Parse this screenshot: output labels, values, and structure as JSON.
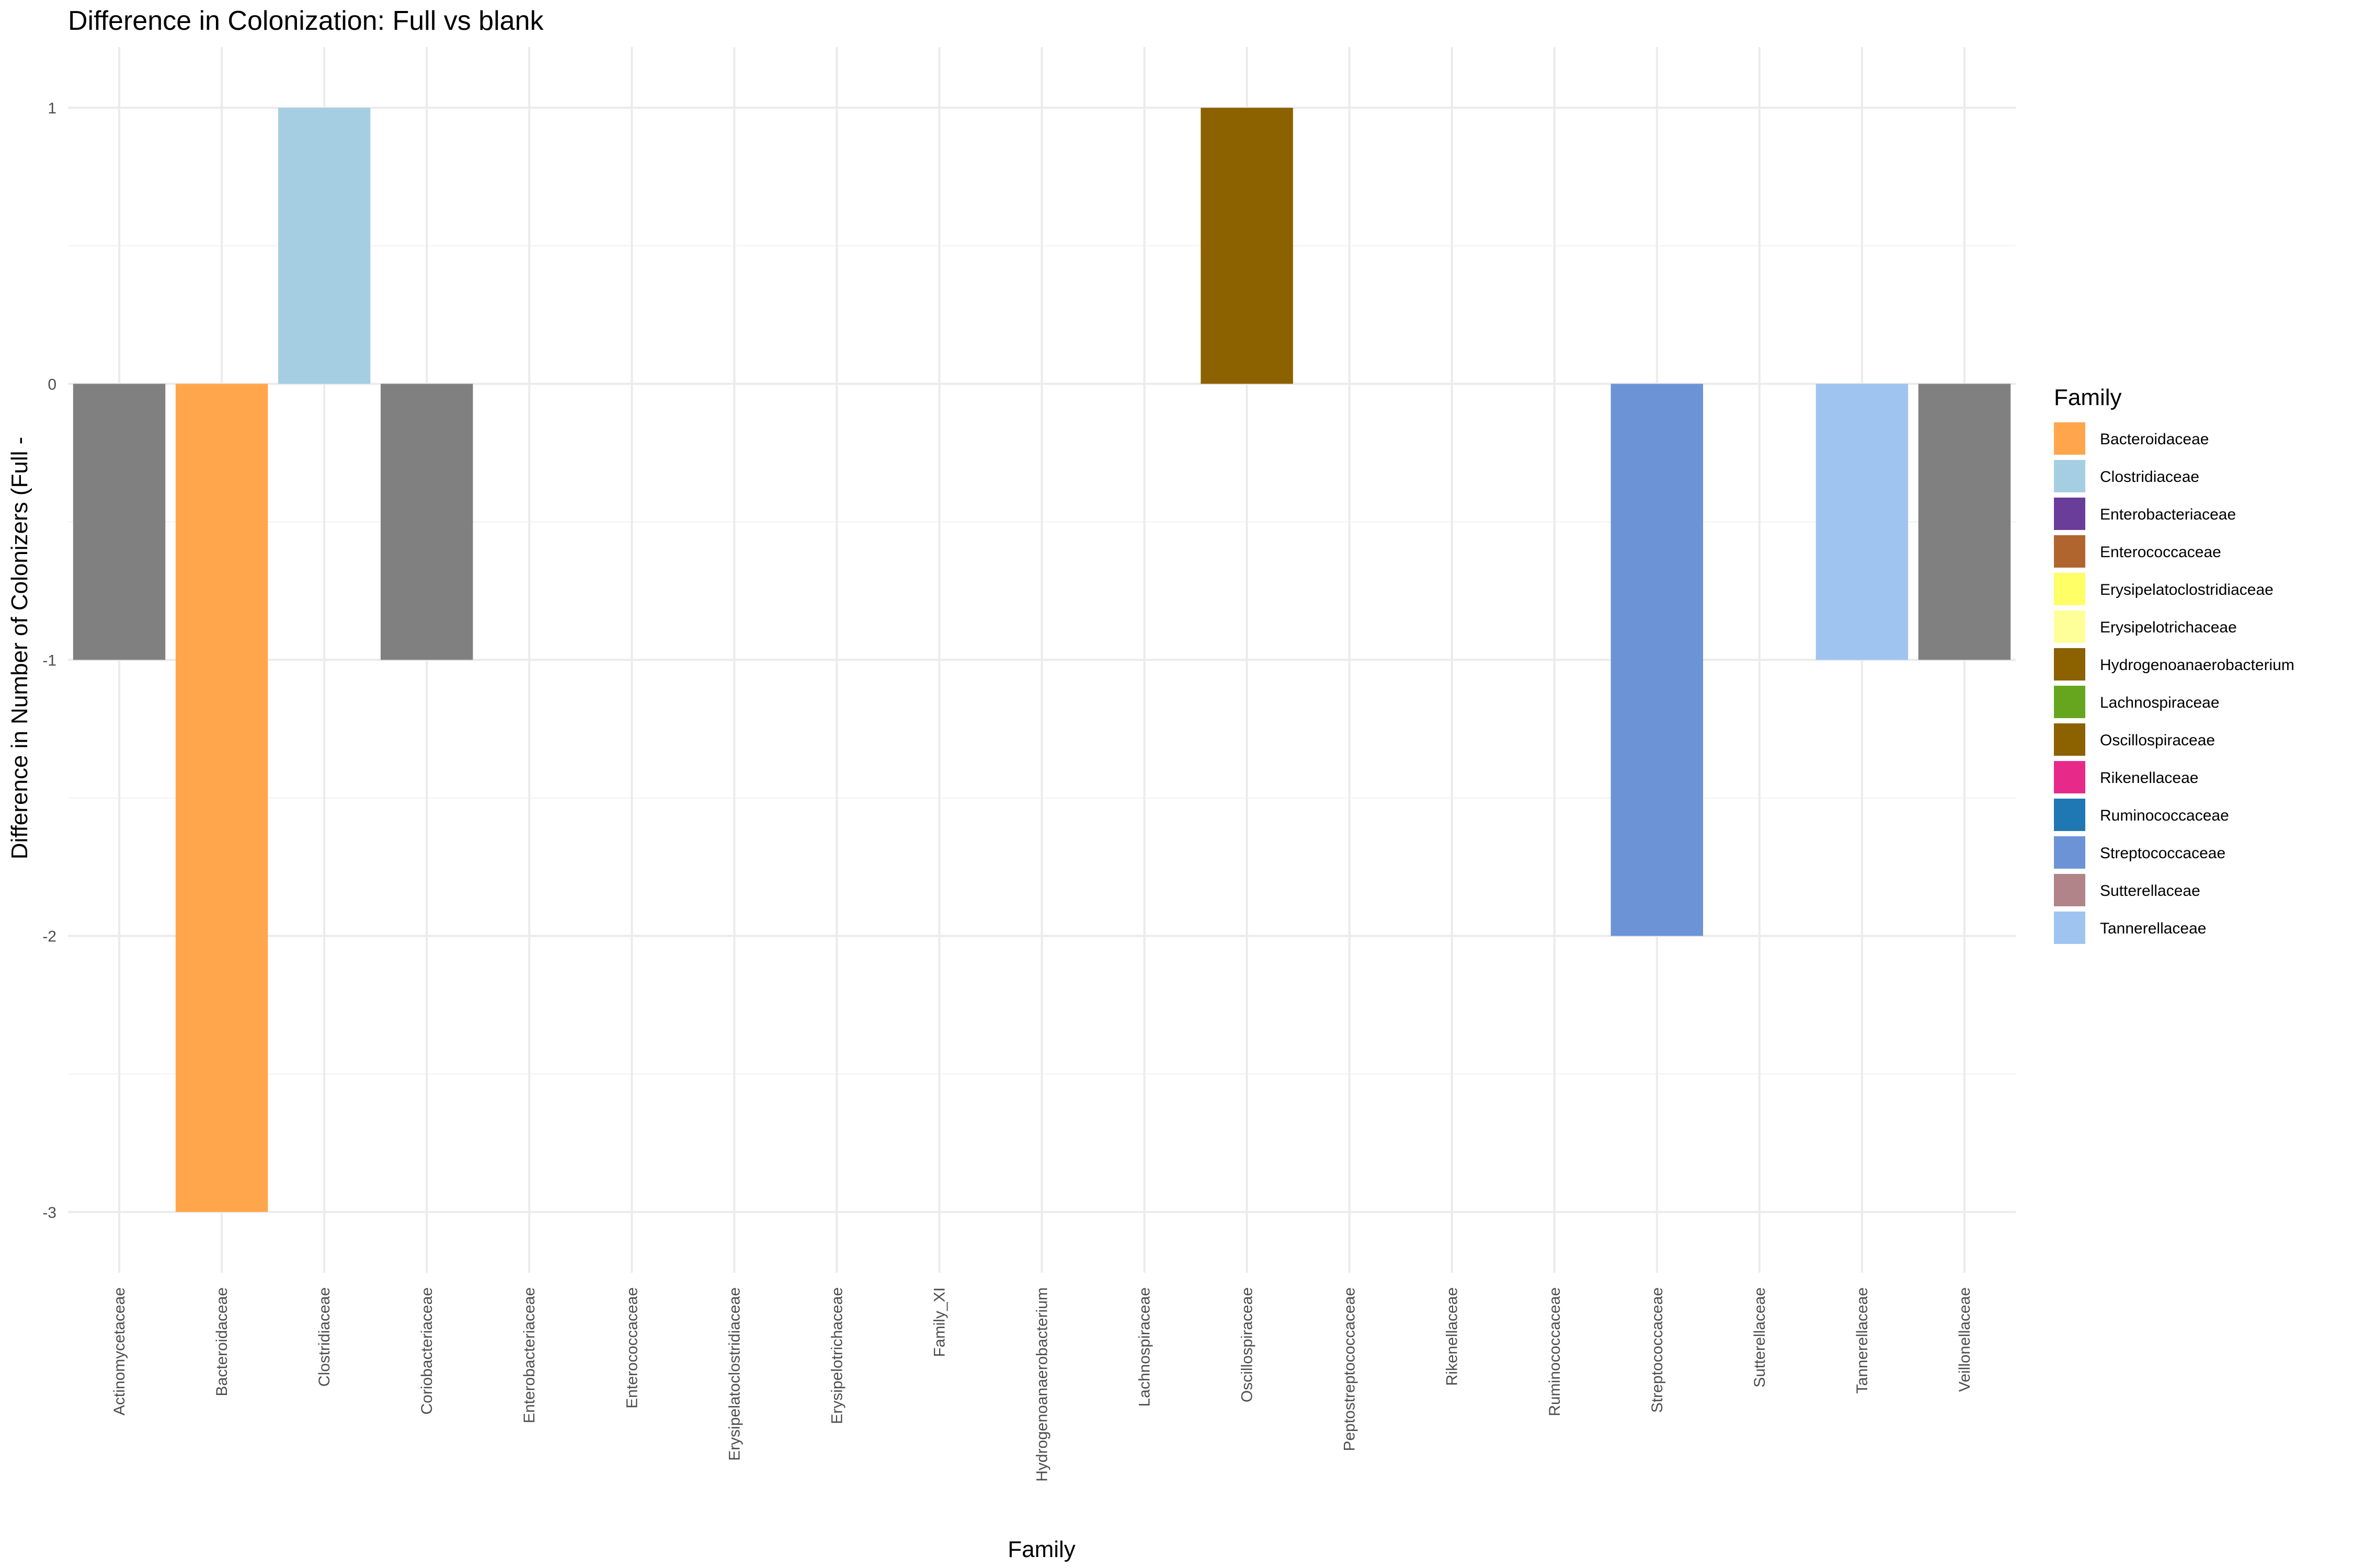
{
  "chart_data": {
    "type": "bar",
    "title": "Difference in Colonization: Full vs blank",
    "xlabel": "Family",
    "ylabel": "Difference in Number of Colonizers (Full -",
    "categories": [
      "Actinomycetaceae",
      "Bacteroidaceae",
      "Clostridiaceae",
      "Coriobacteriaceae",
      "Enterobacteriaceae",
      "Enterococcaceae",
      "Erysipelatoclostridiaceae",
      "Erysipelotrichaceae",
      "Family_XI",
      "Hydrogenoanaerobacterium",
      "Lachnospiraceae",
      "Oscillospiraceae",
      "Peptostreptococcaceae",
      "Rikenellaceae",
      "Ruminococcaceae",
      "Streptococcaceae",
      "Sutterellaceae",
      "Tannerellaceae",
      "Veillonellaceae"
    ],
    "values": [
      -1,
      -3,
      1,
      -1,
      0,
      0,
      0,
      0,
      0,
      0,
      0,
      1,
      0,
      0,
      0,
      -2,
      0,
      -1,
      -1
    ],
    "bar_colors": [
      "#808080",
      "#FFA64D",
      "#A6CEE3",
      "#808080",
      "#808080",
      "#808080",
      "#808080",
      "#808080",
      "#808080",
      "#808080",
      "#808080",
      "#8C6100",
      "#808080",
      "#808080",
      "#808080",
      "#6B93D6",
      "#808080",
      "#A0C4F0",
      "#808080"
    ],
    "yticks": [
      -3,
      -2,
      -1,
      0,
      1
    ],
    "ylim": [
      -3.22,
      1.22
    ],
    "grid": true,
    "legend": {
      "title": "Family",
      "placement": "right",
      "items": [
        {
          "label": "Bacteroidaceae",
          "color": "#FFA64D"
        },
        {
          "label": "Clostridiaceae",
          "color": "#A6CEE3"
        },
        {
          "label": "Enterobacteriaceae",
          "color": "#6A3D9A"
        },
        {
          "label": "Enterococcaceae",
          "color": "#B1652E"
        },
        {
          "label": "Erysipelatoclostridiaceae",
          "color": "#FFFF66"
        },
        {
          "label": "Erysipelotrichaceae",
          "color": "#FFFF99"
        },
        {
          "label": "Hydrogenoanaerobacterium",
          "color": "#8C6100"
        },
        {
          "label": "Lachnospiraceae",
          "color": "#66A61E"
        },
        {
          "label": "Oscillospiraceae",
          "color": "#8C6100"
        },
        {
          "label": "Rikenellaceae",
          "color": "#E7298A"
        },
        {
          "label": "Ruminococcaceae",
          "color": "#1F78B4"
        },
        {
          "label": "Streptococcaceae",
          "color": "#6B93D6"
        },
        {
          "label": "Sutterellaceae",
          "color": "#B08488"
        },
        {
          "label": "Tannerellaceae",
          "color": "#A0C4F0"
        }
      ]
    }
  }
}
